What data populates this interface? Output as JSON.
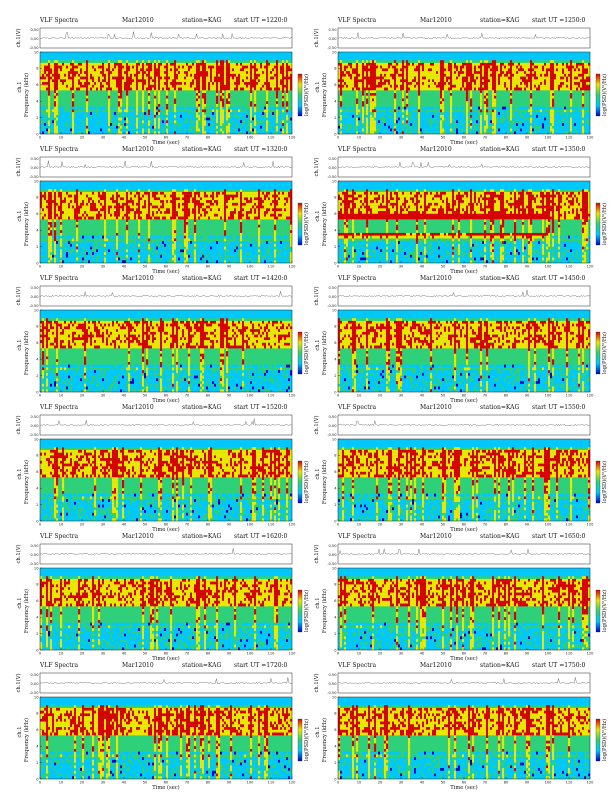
{
  "page_title": "VLF Spectra",
  "date_label": "Mar12010",
  "station_label": "station=KAG",
  "colors": {
    "low": "#0000c8",
    "mid_low": "#00c8ff",
    "mid": "#2fd07a",
    "mid_high": "#e8e800",
    "high": "#d80000",
    "trace": "#555555"
  },
  "chart_data": [
    {
      "type": "heatmap",
      "title": "VLF Spectra",
      "date": "Mar12010",
      "station": "station=KAG",
      "start_label": "start  UT  =1220:0",
      "amp_ylabel": "ch.1(V)",
      "amp_ticks": [
        "0.50",
        "0.00",
        "-0.50"
      ],
      "xlabel": "Time  (sec)",
      "ylabel": "Frequency  (kHz)",
      "ch_label": "ch.1",
      "cbar_label": "log(PSD)(V²/Hz)",
      "xlim": [
        0,
        120
      ],
      "ylim": [
        0,
        10
      ],
      "xticks": [
        "0",
        "10",
        "20",
        "30",
        "40",
        "50",
        "60",
        "70",
        "80",
        "90",
        "100",
        "110",
        "120"
      ],
      "yticks": [
        "0",
        "2",
        "4",
        "6",
        "8",
        "10"
      ]
    },
    {
      "type": "heatmap",
      "title": "VLF Spectra",
      "date": "Mar12010",
      "station": "station=KAG",
      "start_label": "start  UT  =1250:0",
      "amp_ylabel": "ch.1(V)",
      "amp_ticks": [
        "0.50",
        "0.00",
        "-0.50"
      ],
      "xlabel": "Time  (sec)",
      "ylabel": "Frequency  (kHz)",
      "ch_label": "ch.1",
      "cbar_label": "log(PSD)(V²/Hz)",
      "xlim": [
        0,
        120
      ],
      "ylim": [
        0,
        10
      ],
      "xticks": [
        "0",
        "10",
        "20",
        "30",
        "40",
        "50",
        "60",
        "70",
        "80",
        "90",
        "100",
        "110",
        "120"
      ],
      "yticks": [
        "0",
        "2",
        "4",
        "6",
        "8",
        "10"
      ]
    },
    {
      "type": "heatmap",
      "title": "VLF Spectra",
      "date": "Mar12010",
      "station": "station=KAG",
      "start_label": "start  UT  =1320:0",
      "amp_ylabel": "ch.1(V)",
      "amp_ticks": [
        "0.50",
        "0.00",
        "-0.50"
      ],
      "xlabel": "Time  (sec)",
      "ylabel": "Frequency  (kHz)",
      "ch_label": "ch.1",
      "cbar_label": "log(PSD)(V²/Hz)",
      "xlim": [
        0,
        120
      ],
      "ylim": [
        0,
        10
      ],
      "xticks": [
        "0",
        "10",
        "20",
        "30",
        "40",
        "50",
        "60",
        "70",
        "80",
        "90",
        "100",
        "110",
        "120"
      ],
      "yticks": [
        "0",
        "2",
        "4",
        "6",
        "8",
        "10"
      ]
    },
    {
      "type": "heatmap",
      "title": "VLF Spectra",
      "date": "Mar12010",
      "station": "station=KAG",
      "start_label": "start  UT  =1350:0",
      "amp_ylabel": "ch.1(V)",
      "amp_ticks": [
        "0.50",
        "0.00",
        "-0.50"
      ],
      "xlabel": "Time  (sec)",
      "ylabel": "Frequency  (kHz)",
      "ch_label": "ch.1",
      "cbar_label": "log(PSD)(V²/Hz)",
      "xlim": [
        0,
        120
      ],
      "ylim": [
        0,
        10
      ],
      "xticks": [
        "0",
        "10",
        "20",
        "30",
        "40",
        "50",
        "60",
        "70",
        "80",
        "90",
        "100",
        "110",
        "120"
      ],
      "yticks": [
        "0",
        "2",
        "4",
        "6",
        "8",
        "10"
      ]
    },
    {
      "type": "heatmap",
      "title": "VLF Spectra",
      "date": "Mar12010",
      "station": "station=KAG",
      "start_label": "start  UT  =1420:0",
      "amp_ylabel": "ch.1(V)",
      "amp_ticks": [
        "0.50",
        "0.00",
        "-0.50"
      ],
      "xlabel": "Time  (sec)",
      "ylabel": "Frequency  (kHz)",
      "ch_label": "ch.1",
      "cbar_label": "log(PSD)(V²/Hz)",
      "xlim": [
        0,
        120
      ],
      "ylim": [
        0,
        10
      ],
      "xticks": [
        "0",
        "10",
        "20",
        "30",
        "40",
        "50",
        "60",
        "70",
        "80",
        "90",
        "100",
        "110",
        "120"
      ],
      "yticks": [
        "0",
        "2",
        "4",
        "6",
        "8",
        "10"
      ]
    },
    {
      "type": "heatmap",
      "title": "VLF Spectra",
      "date": "Mar12010",
      "station": "station=KAG",
      "start_label": "start  UT  =1450:0",
      "amp_ylabel": "ch.1(V)",
      "amp_ticks": [
        "0.50",
        "0.00",
        "-0.50"
      ],
      "xlabel": "Time  (sec)",
      "ylabel": "Frequency  (kHz)",
      "ch_label": "ch.1",
      "cbar_label": "log(PSD)(V²/Hz)",
      "xlim": [
        0,
        120
      ],
      "ylim": [
        0,
        10
      ],
      "xticks": [
        "0",
        "10",
        "20",
        "30",
        "40",
        "50",
        "60",
        "70",
        "80",
        "90",
        "100",
        "110",
        "120"
      ],
      "yticks": [
        "0",
        "2",
        "4",
        "6",
        "8",
        "10"
      ]
    },
    {
      "type": "heatmap",
      "title": "VLF Spectra",
      "date": "Mar12010",
      "station": "station=KAG",
      "start_label": "start  UT  =1520:0",
      "amp_ylabel": "ch.1(V)",
      "amp_ticks": [
        "0.50",
        "0.00",
        "-0.50"
      ],
      "xlabel": "Time  (sec)",
      "ylabel": "Frequency  (kHz)",
      "ch_label": "ch.1",
      "cbar_label": "log(PSD)(V²/Hz)",
      "xlim": [
        0,
        120
      ],
      "ylim": [
        0,
        10
      ],
      "xticks": [
        "0",
        "10",
        "20",
        "30",
        "40",
        "50",
        "60",
        "70",
        "80",
        "90",
        "100",
        "110",
        "120"
      ],
      "yticks": [
        "0",
        "2",
        "4",
        "6",
        "8",
        "10"
      ]
    },
    {
      "type": "heatmap",
      "title": "VLF Spectra",
      "date": "Mar12010",
      "station": "station=KAG",
      "start_label": "start  UT  =1550:0",
      "amp_ylabel": "ch.1(V)",
      "amp_ticks": [
        "0.50",
        "0.00",
        "-0.50"
      ],
      "xlabel": "Time  (sec)",
      "ylabel": "Frequency  (kHz)",
      "ch_label": "ch.1",
      "cbar_label": "log(PSD)(V²/Hz)",
      "xlim": [
        0,
        120
      ],
      "ylim": [
        0,
        10
      ],
      "xticks": [
        "0",
        "10",
        "20",
        "30",
        "40",
        "50",
        "60",
        "70",
        "80",
        "90",
        "100",
        "110",
        "120"
      ],
      "yticks": [
        "0",
        "2",
        "4",
        "6",
        "8",
        "10"
      ]
    },
    {
      "type": "heatmap",
      "title": "VLF Spectra",
      "date": "Mar12010",
      "station": "station=KAG",
      "start_label": "start  UT  =1620:0",
      "amp_ylabel": "ch.1(V)",
      "amp_ticks": [
        "0.50",
        "0.00",
        "-0.50"
      ],
      "xlabel": "Time  (sec)",
      "ylabel": "Frequency  (kHz)",
      "ch_label": "ch.1",
      "cbar_label": "log(PSD)(V²/Hz)",
      "xlim": [
        0,
        120
      ],
      "ylim": [
        0,
        10
      ],
      "xticks": [
        "0",
        "10",
        "20",
        "30",
        "40",
        "50",
        "60",
        "70",
        "80",
        "90",
        "100",
        "110",
        "120"
      ],
      "yticks": [
        "0",
        "2",
        "4",
        "6",
        "8",
        "10"
      ]
    },
    {
      "type": "heatmap",
      "title": "VLF Spectra",
      "date": "Mar12010",
      "station": "station=KAG",
      "start_label": "start  UT  =1650:0",
      "amp_ylabel": "ch.1(V)",
      "amp_ticks": [
        "0.50",
        "0.00",
        "-0.50"
      ],
      "xlabel": "Time  (sec)",
      "ylabel": "Frequency  (kHz)",
      "ch_label": "ch.1",
      "cbar_label": "log(PSD)(V²/Hz)",
      "xlim": [
        0,
        120
      ],
      "ylim": [
        0,
        10
      ],
      "xticks": [
        "0",
        "10",
        "20",
        "30",
        "40",
        "50",
        "60",
        "70",
        "80",
        "90",
        "100",
        "110",
        "120"
      ],
      "yticks": [
        "0",
        "2",
        "4",
        "6",
        "8",
        "10"
      ]
    },
    {
      "type": "heatmap",
      "title": "VLF Spectra",
      "date": "Mar12010",
      "station": "station=KAG",
      "start_label": "start  UT  =1720:0",
      "amp_ylabel": "ch.1(V)",
      "amp_ticks": [
        "0.50",
        "0.00",
        "-0.50"
      ],
      "xlabel": "Time  (sec)",
      "ylabel": "Frequency  (kHz)",
      "ch_label": "ch.1",
      "cbar_label": "log(PSD)(V²/Hz)",
      "xlim": [
        0,
        120
      ],
      "ylim": [
        0,
        10
      ],
      "xticks": [
        "0",
        "10",
        "20",
        "30",
        "40",
        "50",
        "60",
        "70",
        "80",
        "90",
        "100",
        "110",
        "120"
      ],
      "yticks": [
        "0",
        "2",
        "4",
        "6",
        "8",
        "10"
      ]
    },
    {
      "type": "heatmap",
      "title": "VLF Spectra",
      "date": "Mar12010",
      "station": "station=KAG",
      "start_label": "start  UT  =1750:0",
      "amp_ylabel": "ch.1(V)",
      "amp_ticks": [
        "0.50",
        "0.00",
        "-0.50"
      ],
      "xlabel": "Time  (sec)",
      "ylabel": "Frequency  (kHz)",
      "ch_label": "ch.1",
      "cbar_label": "log(PSD)(V²/Hz)",
      "xlim": [
        0,
        120
      ],
      "ylim": [
        0,
        10
      ],
      "xticks": [
        "0",
        "10",
        "20",
        "30",
        "40",
        "50",
        "60",
        "70",
        "80",
        "90",
        "100",
        "110",
        "120"
      ],
      "yticks": [
        "0",
        "2",
        "4",
        "6",
        "8",
        "10"
      ]
    }
  ]
}
